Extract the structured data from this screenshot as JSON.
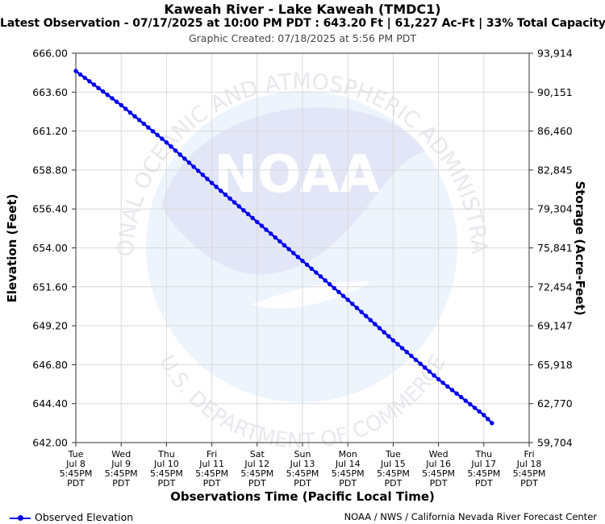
{
  "header": {
    "title": "Kaweah River - Lake Kaweah (TMDC1)",
    "subtitle": "Latest Observation - 07/17/2025 at 10:00 PM PDT : 643.20 Ft | 61,227 Ac-Ft | 33% Total Capacity",
    "created": "Graphic Created: 07/18/2025 at 5:56 PM PDT"
  },
  "watermark": {
    "logo_text": "NOAA",
    "ring_text_top": "NATIONAL OCEANIC AND ATMOSPHERIC ADMINISTRATION",
    "ring_text_bottom": "U.S. DEPARTMENT OF COMMERCE"
  },
  "legend": {
    "label": "Observed Elevation"
  },
  "credit": "NOAA / NWS / California Nevada River Forecast Center",
  "chart_data": {
    "type": "line",
    "xlabel": "Observations Time (Pacific Local Time)",
    "ylabel": "Elevation (Feet)",
    "y2label": "Storage (Acre-Feet)",
    "ylim": [
      642.0,
      666.0
    ],
    "yticks": [
      "666.00",
      "663.60",
      "661.20",
      "658.80",
      "656.40",
      "654.00",
      "651.60",
      "649.20",
      "646.80",
      "644.40",
      "642.00"
    ],
    "y2ticks": [
      "93,914",
      "90,151",
      "86,460",
      "82,845",
      "79,304",
      "75,841",
      "72,454",
      "69,147",
      "65,918",
      "62,770",
      "59,704"
    ],
    "xticks": [
      [
        "Tue",
        "Jul 8",
        "5:45PM",
        "PDT"
      ],
      [
        "Wed",
        "Jul 9",
        "5:45PM",
        "PDT"
      ],
      [
        "Thu",
        "Jul 10",
        "5:45PM",
        "PDT"
      ],
      [
        "Fri",
        "Jul 11",
        "5:45PM",
        "PDT"
      ],
      [
        "Sat",
        "Jul 12",
        "5:45PM",
        "PDT"
      ],
      [
        "Sun",
        "Jul 13",
        "5:45PM",
        "PDT"
      ],
      [
        "Mon",
        "Jul 14",
        "5:45PM",
        "PDT"
      ],
      [
        "Tue",
        "Jul 15",
        "5:45PM",
        "PDT"
      ],
      [
        "Wed",
        "Jul 16",
        "5:45PM",
        "PDT"
      ],
      [
        "Thu",
        "Jul 17",
        "5:45PM",
        "PDT"
      ],
      [
        "Fri",
        "Jul 18",
        "5:45PM",
        "PDT"
      ]
    ],
    "grid": true,
    "color": "#0000ee",
    "series": [
      {
        "name": "Observed Elevation",
        "x": [
          "2025-07-08 17:45",
          "2025-07-09 17:45",
          "2025-07-10 17:45",
          "2025-07-11 17:45",
          "2025-07-12 17:45",
          "2025-07-13 17:45",
          "2025-07-14 17:45",
          "2025-07-15 17:45",
          "2025-07-16 17:45",
          "2025-07-17 17:45",
          "2025-07-17 22:00"
        ],
        "y": [
          664.9,
          662.8,
          660.5,
          658.0,
          655.6,
          653.2,
          650.8,
          648.3,
          645.9,
          643.7,
          643.2
        ]
      }
    ]
  }
}
